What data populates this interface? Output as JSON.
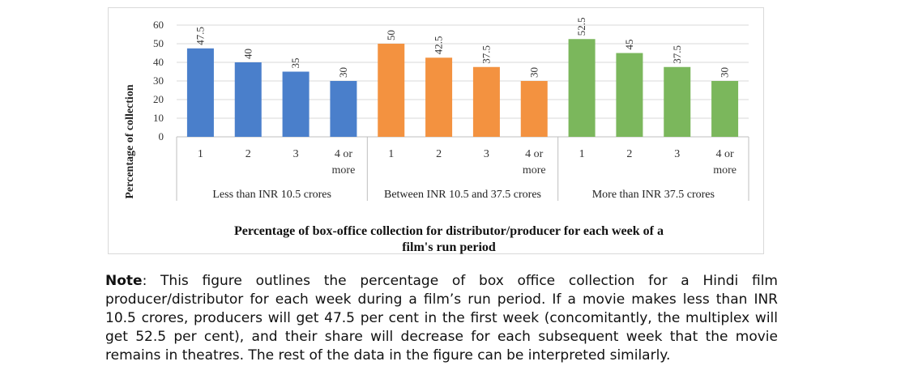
{
  "chart_data": {
    "type": "bar",
    "title": "Percentage of box-office collection for distributor/producer for each week of a film's run period",
    "title_lines": [
      "Percentage of box-office collection for distributor/producer for each week of a",
      "film's run period"
    ],
    "ylabel": "Percentage of collection",
    "ylim": [
      0,
      60
    ],
    "yticks": [
      0,
      10,
      20,
      30,
      40,
      50,
      60
    ],
    "grid": true,
    "groups": [
      {
        "name": "Less than INR 10.5 crores",
        "color": "#4a7fcb",
        "categories": [
          "1",
          "2",
          "3",
          "4 or more"
        ],
        "values": [
          47.5,
          40,
          35,
          30
        ],
        "value_labels": [
          "47.5",
          "40",
          "35",
          "30"
        ]
      },
      {
        "name": "Between INR 10.5 and 37.5 crores",
        "color": "#f39240",
        "categories": [
          "1",
          "2",
          "3",
          "4 or more"
        ],
        "values": [
          50,
          42.5,
          37.5,
          30
        ],
        "value_labels": [
          "50",
          "42.5",
          "37.5",
          "30"
        ]
      },
      {
        "name": "More than INR 37.5 crores",
        "color": "#7bb75c",
        "categories": [
          "1",
          "2",
          "3",
          "4 or more"
        ],
        "values": [
          52.5,
          45,
          37.5,
          30
        ],
        "value_labels": [
          "52.5",
          "45",
          "37.5",
          "30"
        ]
      }
    ]
  },
  "note": {
    "label": "Note",
    "text": ": This figure outlines the percentage of box office collection for a Hindi film producer/distributor for each week during a film’s run period. If a movie makes less than INR 10.5 crores, producers will get 47.5 per cent in the first week (concomitantly, the multiplex will get 52.5 per cent), and their share will decrease for each subsequent week that the movie remains in theatres. The rest of the data in the figure can be interpreted similarly."
  }
}
